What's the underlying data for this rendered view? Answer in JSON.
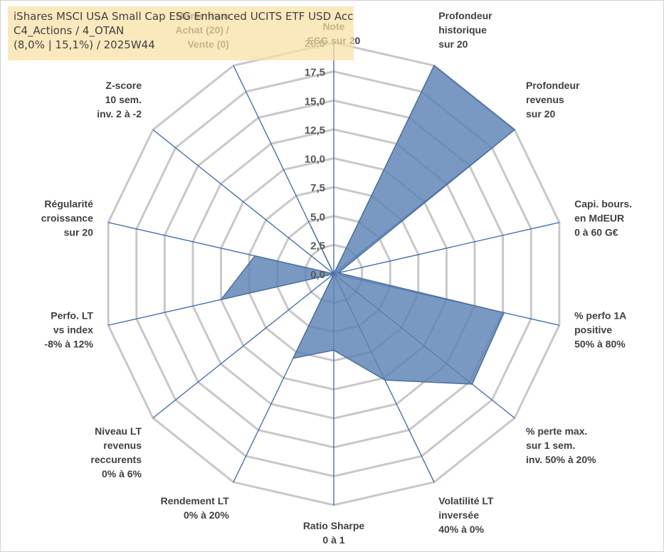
{
  "title_lines": [
    "iShares MSCI USA Small Cap ESG Enhanced UCITS ETF USD Acc",
    "C4_Actions / 4_OTAN",
    "(8,0% | 15,1%) / 2025W44"
  ],
  "chart_data": {
    "type": "radar",
    "rmax": 20,
    "ticks": [
      "0,0",
      "2,5",
      "5,0",
      "7,5",
      "10,0",
      "12,5",
      "15,0",
      "17,5",
      "20,0"
    ],
    "axes": [
      [
        "Note",
        "ESG sur 20"
      ],
      [
        "Profondeur",
        "historique",
        "sur 20"
      ],
      [
        "Profondeur",
        "revenus",
        "sur 20"
      ],
      [
        "Capi. bours.",
        "en MdEUR",
        "0 à 60 G€"
      ],
      [
        "% perfo 1A",
        "positive",
        "50% à 80%"
      ],
      [
        "% perte max.",
        "sur 1 sem.",
        "inv. 50% à 20%"
      ],
      [
        "Volatilité LT",
        "inversée",
        "40% à 0%"
      ],
      [
        "Ratio Sharpe",
        "0 à 1"
      ],
      [
        "Rendement LT",
        "0% à 20%"
      ],
      [
        "Niveau LT",
        "revenus",
        "reccurents",
        "0% à 6%"
      ],
      [
        "Perfo. LT",
        "vs index",
        "-8% à 12%"
      ],
      [
        "Régularité",
        "croissance",
        "sur 20"
      ],
      [
        "Z-score",
        "10 sem.",
        "inv. 2 à -2"
      ],
      [
        "Momentum",
        "Achat (20) /",
        "Vente (0)"
      ]
    ],
    "values": [
      0,
      20,
      20,
      0.4,
      15.1,
      15.3,
      10.2,
      6.6,
      8.1,
      0,
      10.0,
      7.0,
      0,
      4.6
    ],
    "grid": true,
    "colors": {
      "fill": "#5b82b4",
      "edge": "#4a6f9f",
      "spoke": "#3c67b0",
      "ring": "#c8c8c8"
    }
  }
}
